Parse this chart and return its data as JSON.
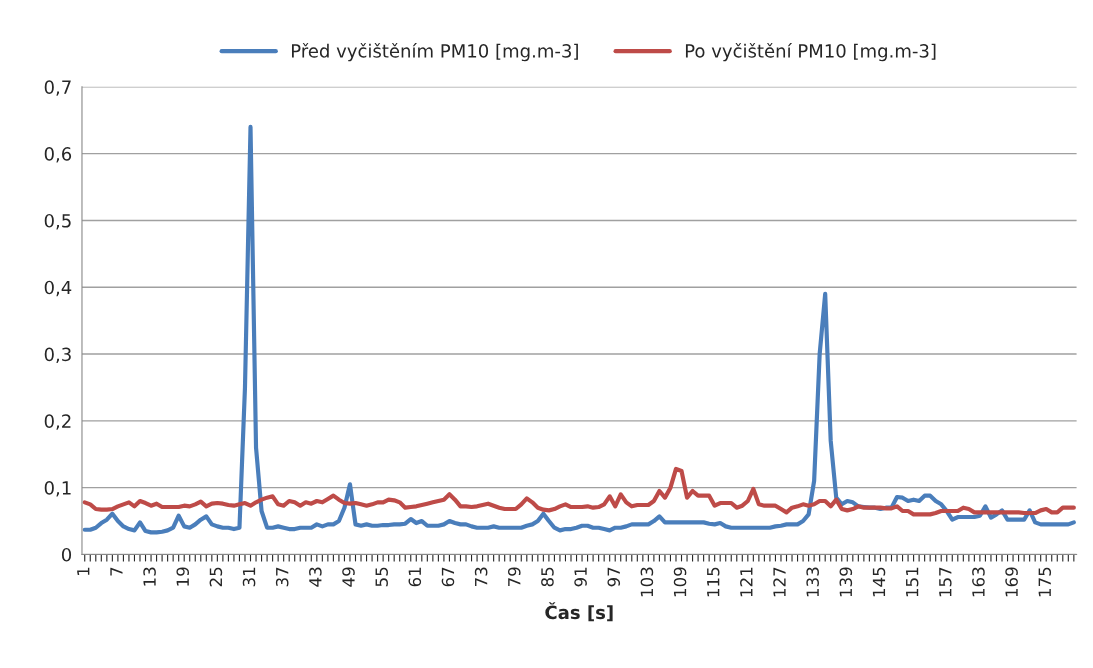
{
  "chart_data": {
    "type": "line",
    "xlabel": "Čas [s]",
    "categories": [
      "1",
      null,
      null,
      null,
      null,
      null,
      "7",
      null,
      null,
      null,
      null,
      null,
      "13",
      null,
      null,
      null,
      null,
      null,
      "19",
      null,
      null,
      null,
      null,
      null,
      "25",
      null,
      null,
      null,
      null,
      null,
      "31",
      null,
      null,
      null,
      null,
      null,
      "37",
      null,
      null,
      null,
      null,
      null,
      "43",
      null,
      null,
      null,
      null,
      null,
      "49",
      null,
      null,
      null,
      null,
      null,
      "55",
      null,
      null,
      null,
      null,
      null,
      "61",
      null,
      null,
      null,
      null,
      null,
      "67",
      null,
      null,
      null,
      null,
      null,
      "73",
      null,
      null,
      null,
      null,
      null,
      "79",
      null,
      null,
      null,
      null,
      null,
      "85",
      null,
      null,
      null,
      null,
      null,
      "91",
      null,
      null,
      null,
      null,
      null,
      "97",
      null,
      null,
      null,
      null,
      null,
      "103",
      null,
      null,
      null,
      null,
      null,
      "109",
      null,
      null,
      null,
      null,
      null,
      "115",
      null,
      null,
      null,
      null,
      null,
      "121",
      null,
      null,
      null,
      null,
      null,
      "127",
      null,
      null,
      null,
      null,
      null,
      "133",
      null,
      null,
      null,
      null,
      null,
      "139",
      null,
      null,
      null,
      null,
      null,
      "145",
      null,
      null,
      null,
      null,
      null,
      "151",
      null,
      null,
      null,
      null,
      null,
      "157",
      null,
      null,
      null,
      null,
      null,
      "163",
      null,
      null,
      null,
      null,
      null,
      "169",
      null,
      null,
      null,
      null,
      null,
      "175",
      null,
      null,
      null,
      null,
      null
    ],
    "series": [
      {
        "name": "Před vyčištěním PM10 [mg.m-3]",
        "color": "#4a7ebb",
        "values": [
          0.037,
          0.037,
          0.04,
          0.047,
          0.052,
          0.061,
          0.05,
          0.042,
          0.038,
          0.036,
          0.048,
          0.035,
          0.033,
          0.033,
          0.034,
          0.036,
          0.04,
          0.058,
          0.042,
          0.04,
          0.045,
          0.052,
          0.057,
          0.045,
          0.042,
          0.04,
          0.04,
          0.038,
          0.04,
          0.25,
          0.64,
          0.16,
          0.065,
          0.04,
          0.04,
          0.042,
          0.04,
          0.038,
          0.038,
          0.04,
          0.04,
          0.04,
          0.045,
          0.042,
          0.045,
          0.045,
          0.05,
          0.07,
          0.105,
          0.045,
          0.043,
          0.045,
          0.043,
          0.043,
          0.044,
          0.044,
          0.045,
          0.045,
          0.046,
          0.053,
          0.047,
          0.05,
          0.043,
          0.043,
          0.043,
          0.045,
          0.05,
          0.047,
          0.045,
          0.045,
          0.042,
          0.04,
          0.04,
          0.04,
          0.042,
          0.04,
          0.04,
          0.04,
          0.04,
          0.04,
          0.043,
          0.045,
          0.05,
          0.061,
          0.05,
          0.04,
          0.036,
          0.038,
          0.038,
          0.04,
          0.043,
          0.043,
          0.04,
          0.04,
          0.038,
          0.036,
          0.04,
          0.04,
          0.042,
          0.045,
          0.045,
          0.045,
          0.045,
          0.05,
          0.057,
          0.048,
          0.048,
          0.048,
          0.048,
          0.048,
          0.048,
          0.048,
          0.048,
          0.046,
          0.045,
          0.047,
          0.042,
          0.04,
          0.04,
          0.04,
          0.04,
          0.04,
          0.04,
          0.04,
          0.04,
          0.042,
          0.043,
          0.045,
          0.045,
          0.045,
          0.05,
          0.06,
          0.11,
          0.3,
          0.39,
          0.17,
          0.085,
          0.075,
          0.08,
          0.078,
          0.072,
          0.071,
          0.07,
          0.07,
          0.068,
          0.07,
          0.07,
          0.086,
          0.085,
          0.08,
          0.082,
          0.08,
          0.088,
          0.088,
          0.08,
          0.075,
          0.065,
          0.052,
          0.056,
          0.056,
          0.056,
          0.056,
          0.058,
          0.072,
          0.055,
          0.06,
          0.066,
          0.052,
          0.052,
          0.052,
          0.052,
          0.066,
          0.048,
          0.045,
          0.045,
          0.045,
          0.045,
          0.045,
          0.045,
          0.048
        ]
      },
      {
        "name": "Po vyčištění PM10 [mg.m-3]",
        "color": "#be4b48",
        "values": [
          0.078,
          0.075,
          0.068,
          0.067,
          0.067,
          0.068,
          0.072,
          0.075,
          0.078,
          0.072,
          0.08,
          0.077,
          0.073,
          0.076,
          0.071,
          0.071,
          0.071,
          0.071,
          0.073,
          0.072,
          0.075,
          0.079,
          0.072,
          0.076,
          0.077,
          0.076,
          0.074,
          0.073,
          0.075,
          0.077,
          0.073,
          0.078,
          0.082,
          0.085,
          0.087,
          0.075,
          0.073,
          0.08,
          0.078,
          0.073,
          0.078,
          0.076,
          0.08,
          0.078,
          0.083,
          0.088,
          0.082,
          0.077,
          0.076,
          0.077,
          0.075,
          0.073,
          0.075,
          0.078,
          0.078,
          0.082,
          0.081,
          0.078,
          0.07,
          0.071,
          0.072,
          0.074,
          0.076,
          0.078,
          0.08,
          0.082,
          0.09,
          0.082,
          0.072,
          0.072,
          0.071,
          0.072,
          0.074,
          0.076,
          0.073,
          0.07,
          0.068,
          0.068,
          0.068,
          0.075,
          0.084,
          0.078,
          0.07,
          0.067,
          0.066,
          0.068,
          0.072,
          0.075,
          0.071,
          0.071,
          0.071,
          0.072,
          0.07,
          0.071,
          0.075,
          0.087,
          0.072,
          0.09,
          0.078,
          0.072,
          0.074,
          0.074,
          0.074,
          0.08,
          0.095,
          0.085,
          0.1,
          0.128,
          0.125,
          0.085,
          0.095,
          0.088,
          0.088,
          0.088,
          0.073,
          0.077,
          0.077,
          0.077,
          0.07,
          0.073,
          0.08,
          0.098,
          0.075,
          0.073,
          0.073,
          0.073,
          0.068,
          0.063,
          0.07,
          0.072,
          0.075,
          0.073,
          0.075,
          0.08,
          0.08,
          0.072,
          0.082,
          0.068,
          0.066,
          0.068,
          0.072,
          0.07,
          0.07,
          0.07,
          0.07,
          0.069,
          0.069,
          0.072,
          0.065,
          0.065,
          0.06,
          0.06,
          0.06,
          0.06,
          0.062,
          0.065,
          0.065,
          0.065,
          0.065,
          0.07,
          0.068,
          0.063,
          0.063,
          0.063,
          0.063,
          0.063,
          0.063,
          0.063,
          0.063,
          0.063,
          0.062,
          0.062,
          0.062,
          0.066,
          0.068,
          0.063,
          0.063,
          0.07,
          0.07,
          0.07
        ]
      }
    ],
    "ylim": [
      0,
      0.7
    ],
    "yticks": [
      0,
      {
        "value": 0.1,
        "label": "0,1"
      },
      {
        "value": 0.2,
        "label": "0,2"
      },
      {
        "value": 0.3,
        "label": "0,3"
      },
      {
        "value": 0.4,
        "label": "0,4"
      },
      {
        "value": 0.5,
        "label": "0,5"
      },
      {
        "value": 0.6,
        "label": "0,6"
      },
      {
        "value": 0.7,
        "label": "0,7"
      }
    ],
    "grid": "y",
    "legend": "top",
    "marker": "none",
    "line_style": "solid"
  }
}
